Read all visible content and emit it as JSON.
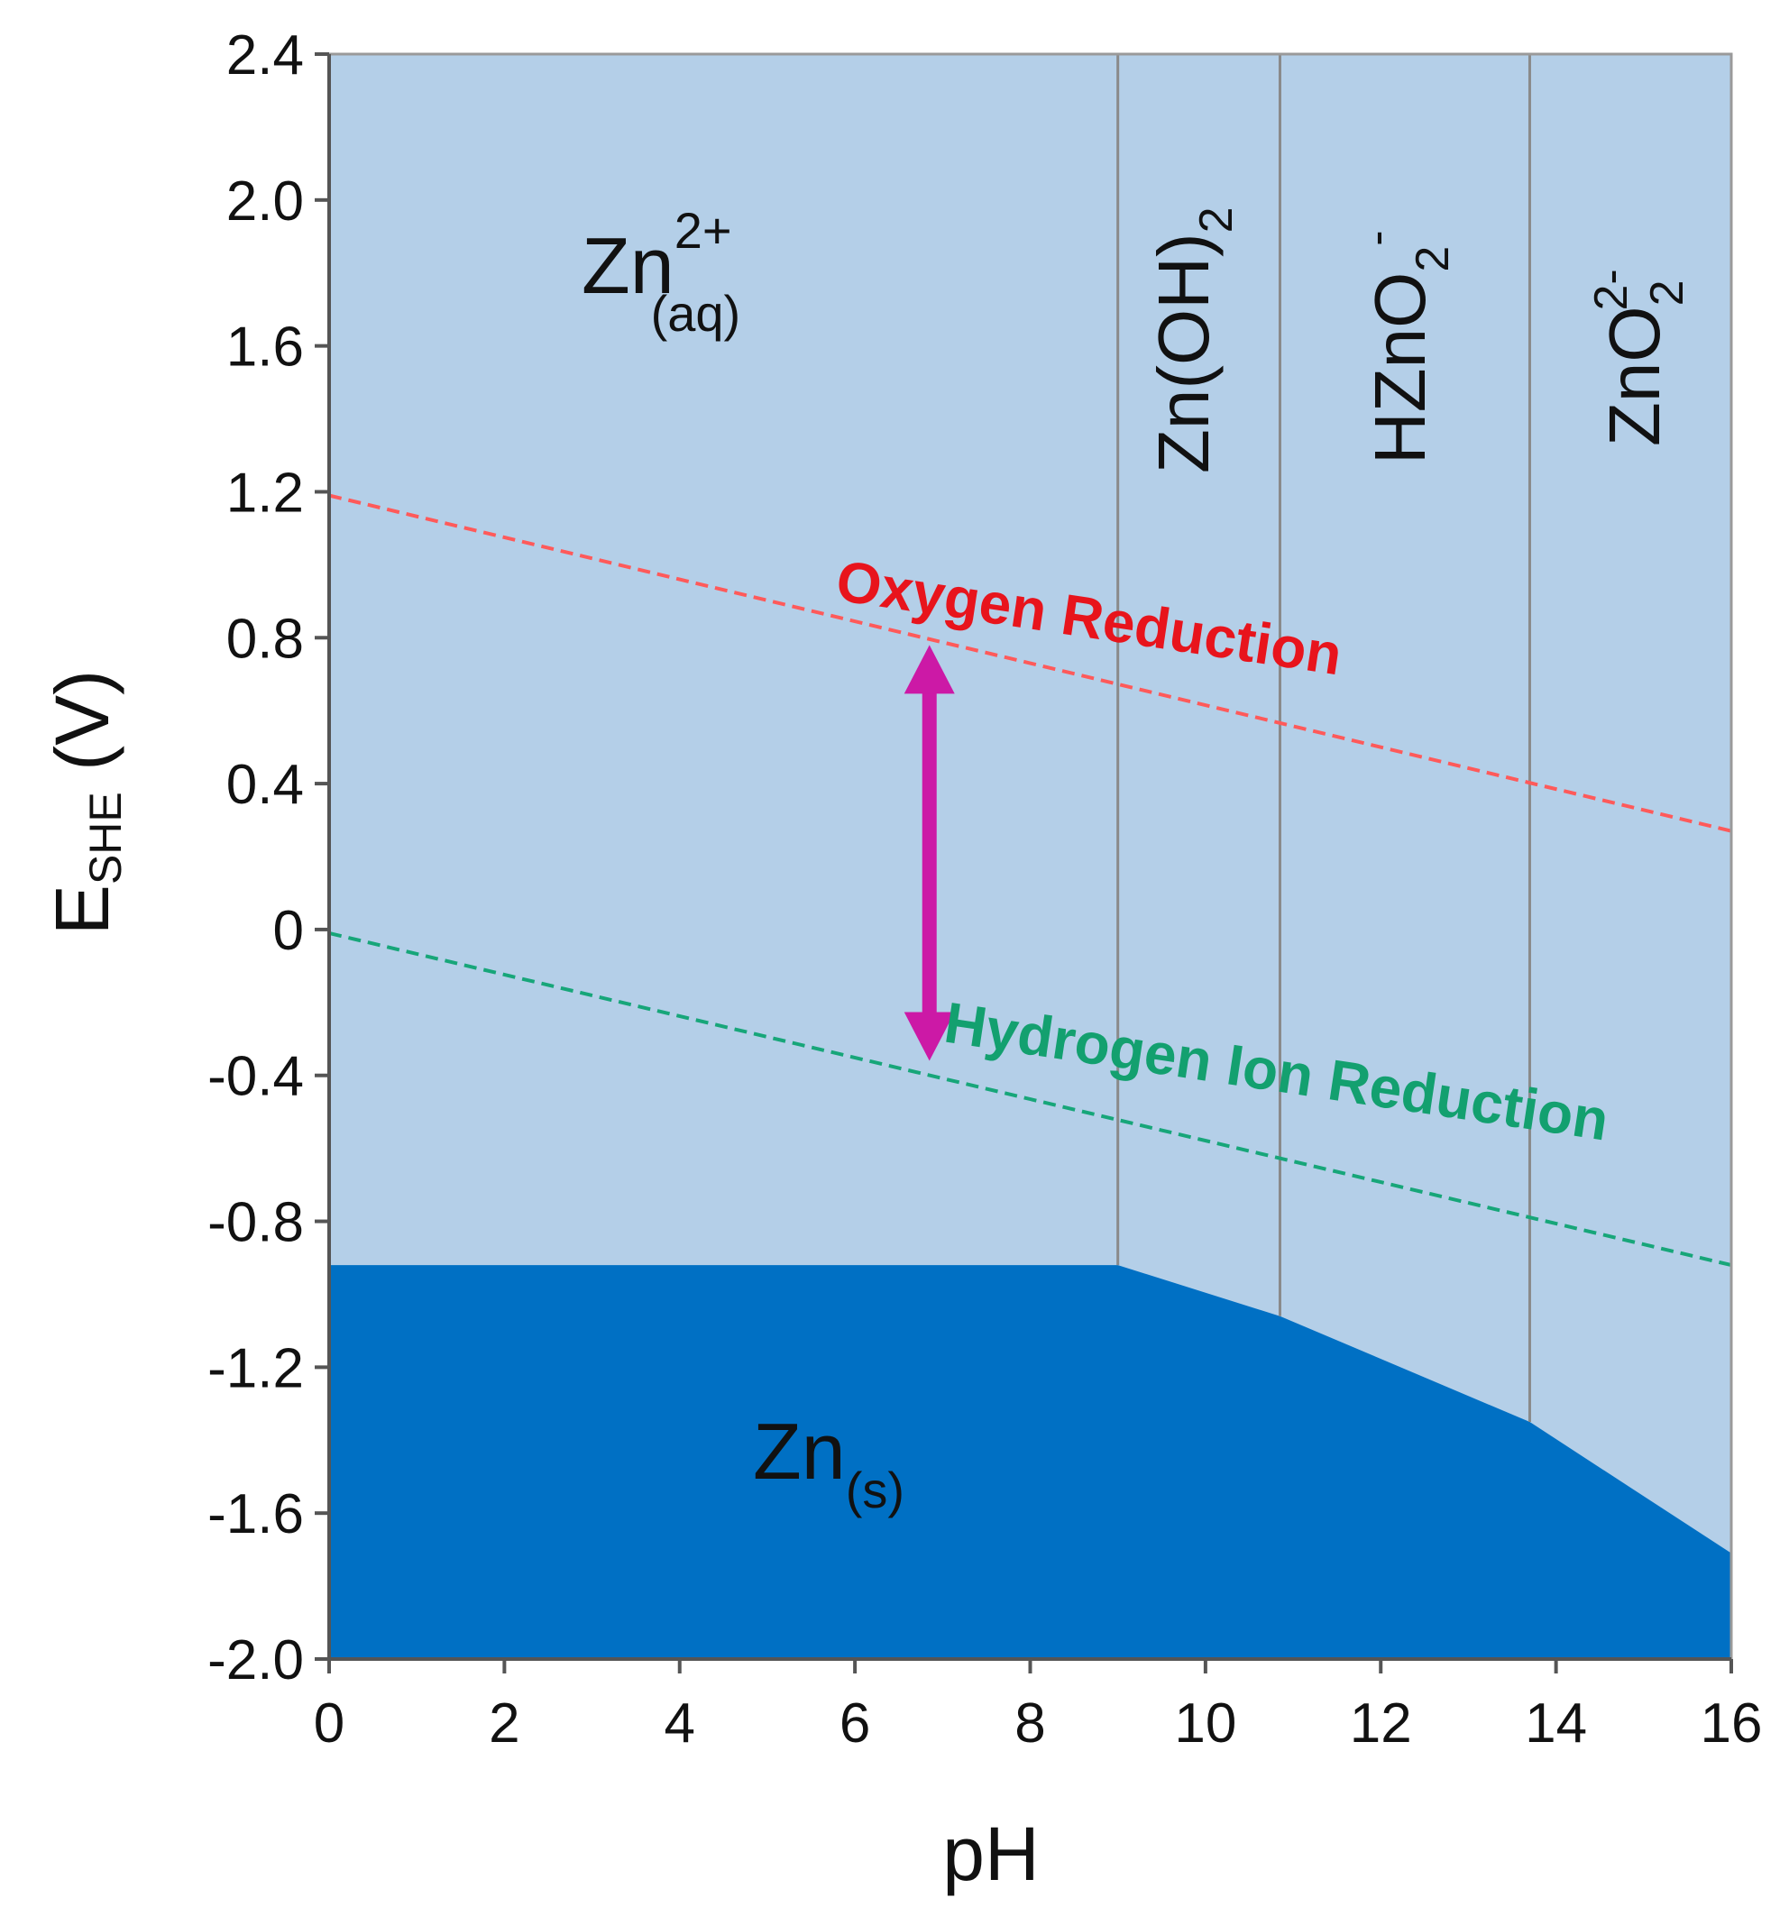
{
  "chart_data": {
    "type": "area",
    "title": "",
    "xlabel": "pH",
    "ylabel": {
      "main": "E",
      "sub": "SHE",
      "rest": " (V)"
    },
    "xlim": [
      0,
      16
    ],
    "ylim": [
      -2.0,
      2.4
    ],
    "x_ticks": [
      "0",
      "2",
      "4",
      "6",
      "8",
      "10",
      "12",
      "14",
      "16"
    ],
    "y_ticks": [
      "2.4",
      "2.0",
      "1.6",
      "1.2",
      "0.8",
      "0.4",
      "0",
      "-0.4",
      "-0.8",
      "-1.2",
      "-1.6",
      "-2.0"
    ],
    "grid": false,
    "colors": {
      "aqueous_region": "#b4cfe8",
      "solid_region": "#0070c4",
      "oxygen_line": "#ff5a5a",
      "hydrogen_line": "#17a679",
      "oxygen_label": "#e8141c",
      "hydrogen_label": "#13a06f",
      "arrow": "#cc19a6",
      "boundary": "#8a8a8a"
    },
    "zn_solid_boundary": [
      {
        "x": 0,
        "y": -0.92
      },
      {
        "x": 9.0,
        "y": -0.92
      },
      {
        "x": 10.85,
        "y": -1.06
      },
      {
        "x": 13.7,
        "y": -1.35
      },
      {
        "x": 16,
        "y": -1.71
      }
    ],
    "phase_boundaries_ph": [
      9.0,
      10.85,
      13.7
    ],
    "oxygen_reduction": {
      "label": "Oxygen Reduction",
      "points": [
        {
          "x": 0,
          "y": 1.19
        },
        {
          "x": 16,
          "y": 0.27
        }
      ]
    },
    "hydrogen_reduction": {
      "label": "Hydrogen Ion Reduction",
      "points": [
        {
          "x": 0,
          "y": -0.01
        },
        {
          "x": 16,
          "y": -0.92
        }
      ]
    },
    "arrow": {
      "x": 6.85,
      "y_top": 0.78,
      "y_bottom": -0.36
    },
    "regions": {
      "zn2": {
        "main": "Zn",
        "sup": "2+",
        "sub": "(aq)"
      },
      "zn_s": {
        "main": "Zn",
        "sub": "(s)"
      },
      "zn_oh2": {
        "main": "Zn(OH)",
        "sub": "2"
      },
      "hzno2": {
        "main": "HZnO",
        "sub": "2",
        "sup": "-"
      },
      "zno2": {
        "main": "ZnO",
        "sub": "2",
        "sup": "2-"
      }
    }
  }
}
